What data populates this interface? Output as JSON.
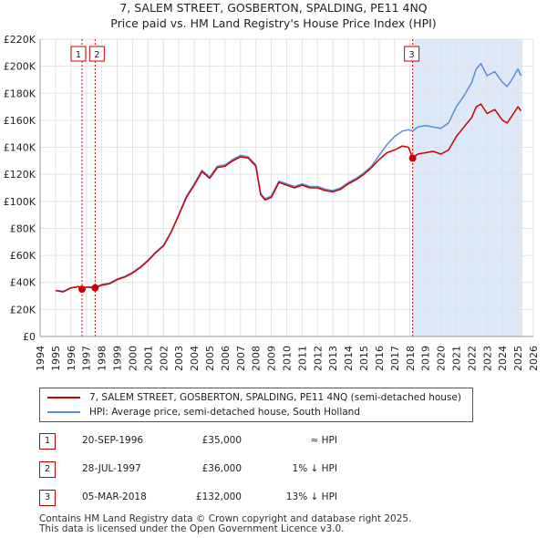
{
  "title_line1": "7, SALEM STREET, GOSBERTON, SPALDING, PE11 4NQ",
  "title_line2": "Price paid vs. HM Land Registry's House Price Index (HPI)",
  "colors": {
    "property": "#cc0000",
    "hpi": "#5b8fd4",
    "shade": "#dde8f8",
    "marker_line": "#cc0000"
  },
  "legend": {
    "property_label": "7, SALEM STREET, GOSBERTON, SPALDING, PE11 4NQ (semi-detached house)",
    "hpi_label": "HPI: Average price, semi-detached house, South Holland"
  },
  "sales": [
    {
      "num": "1",
      "date": "20-SEP-1996",
      "price": "£35,000",
      "hpi": "≈ HPI"
    },
    {
      "num": "2",
      "date": "28-JUL-1997",
      "price": "£36,000",
      "hpi": "1% ↓ HPI"
    },
    {
      "num": "3",
      "date": "05-MAR-2018",
      "price": "£132,000",
      "hpi": "13% ↓ HPI"
    }
  ],
  "footer_line1": "Contains HM Land Registry data © Crown copyright and database right 2025.",
  "footer_line2": "This data is licensed under the Open Government Licence v3.0.",
  "chart_data": {
    "type": "line",
    "title": "7, SALEM STREET, GOSBERTON, SPALDING, PE11 4NQ — Price paid vs. HPI",
    "xlim": [
      1994,
      2026
    ],
    "ylim": [
      0,
      220000
    ],
    "x_ticks": [
      1994,
      1995,
      1996,
      1997,
      1998,
      1999,
      2000,
      2001,
      2002,
      2003,
      2004,
      2005,
      2006,
      2007,
      2008,
      2009,
      2010,
      2011,
      2012,
      2013,
      2014,
      2015,
      2016,
      2017,
      2018,
      2019,
      2020,
      2021,
      2022,
      2023,
      2024,
      2025,
      2026
    ],
    "y_ticks": [
      0,
      20000,
      40000,
      60000,
      80000,
      100000,
      120000,
      140000,
      160000,
      180000,
      200000,
      220000
    ],
    "y_tick_labels": [
      "£0",
      "£20K",
      "£40K",
      "£60K",
      "£80K",
      "£100K",
      "£120K",
      "£140K",
      "£160K",
      "£180K",
      "£200K",
      "£220K"
    ],
    "grid": true,
    "shaded_region": [
      2018.17,
      2025.3
    ],
    "sale_markers": [
      {
        "label": "1",
        "x": 1996.72,
        "y": 35000
      },
      {
        "label": "2",
        "x": 1997.57,
        "y": 36000
      },
      {
        "label": "3",
        "x": 2018.17,
        "y": 132000
      }
    ],
    "series": [
      {
        "name": "7, SALEM STREET, GOSBERTON, SPALDING, PE11 4NQ (semi-detached house)",
        "x": [
          1995.0,
          1995.5,
          1996.0,
          1996.5,
          1996.72,
          1997.0,
          1997.57,
          1998.0,
          1998.5,
          1999.0,
          1999.5,
          2000.0,
          2000.5,
          2001.0,
          2001.5,
          2002.0,
          2002.5,
          2003.0,
          2003.5,
          2004.0,
          2004.5,
          2005.0,
          2005.5,
          2006.0,
          2006.5,
          2007.0,
          2007.5,
          2008.0,
          2008.3,
          2008.6,
          2009.0,
          2009.5,
          2010.0,
          2010.5,
          2011.0,
          2011.5,
          2012.0,
          2012.5,
          2013.0,
          2013.5,
          2014.0,
          2014.5,
          2015.0,
          2015.5,
          2016.0,
          2016.5,
          2017.0,
          2017.5,
          2017.9,
          2018.17,
          2018.5,
          2019.0,
          2019.5,
          2020.0,
          2020.5,
          2021.0,
          2021.5,
          2022.0,
          2022.3,
          2022.6,
          2023.0,
          2023.5,
          2024.0,
          2024.3,
          2024.6,
          2025.0,
          2025.2
        ],
        "y": [
          34000,
          33000,
          36000,
          37000,
          35000,
          36500,
          36000,
          38000,
          39000,
          42000,
          44000,
          47000,
          51000,
          56000,
          62000,
          67000,
          77000,
          90000,
          103000,
          112000,
          122000,
          117000,
          125000,
          126000,
          130000,
          133000,
          132000,
          126000,
          105000,
          101000,
          103000,
          114000,
          112000,
          110000,
          112000,
          110000,
          110000,
          108000,
          107000,
          109000,
          113000,
          116000,
          120000,
          125000,
          131000,
          136000,
          138000,
          141000,
          140000,
          132000,
          135000,
          136000,
          137000,
          135000,
          138000,
          148000,
          155000,
          162000,
          170000,
          172000,
          165000,
          168000,
          160000,
          158000,
          163000,
          170000,
          167000
        ]
      },
      {
        "name": "HPI: Average price, semi-detached house, South Holland",
        "x": [
          1995.0,
          1995.5,
          1996.0,
          1996.5,
          1996.72,
          1997.0,
          1997.57,
          1998.0,
          1998.5,
          1999.0,
          1999.5,
          2000.0,
          2000.5,
          2001.0,
          2001.5,
          2002.0,
          2002.5,
          2003.0,
          2003.5,
          2004.0,
          2004.5,
          2005.0,
          2005.5,
          2006.0,
          2006.5,
          2007.0,
          2007.5,
          2008.0,
          2008.3,
          2008.6,
          2009.0,
          2009.5,
          2010.0,
          2010.5,
          2011.0,
          2011.5,
          2012.0,
          2012.5,
          2013.0,
          2013.5,
          2014.0,
          2014.5,
          2015.0,
          2015.5,
          2016.0,
          2016.5,
          2017.0,
          2017.5,
          2017.9,
          2018.17,
          2018.5,
          2019.0,
          2019.5,
          2020.0,
          2020.5,
          2021.0,
          2021.5,
          2022.0,
          2022.3,
          2022.6,
          2023.0,
          2023.5,
          2024.0,
          2024.3,
          2024.6,
          2025.0,
          2025.2
        ],
        "y": [
          34000,
          33500,
          36000,
          37000,
          35000,
          36500,
          36500,
          38500,
          39500,
          42500,
          44500,
          47500,
          51500,
          56500,
          62500,
          67500,
          77500,
          90500,
          104000,
          113000,
          123000,
          118000,
          126000,
          127000,
          131000,
          134000,
          133000,
          127000,
          106000,
          102000,
          104000,
          115000,
          113000,
          111000,
          113000,
          111000,
          111000,
          109000,
          108000,
          110000,
          114000,
          117000,
          121000,
          126000,
          134000,
          142000,
          148000,
          152000,
          153000,
          152000,
          155000,
          156000,
          155000,
          154000,
          158000,
          170000,
          178000,
          188000,
          198000,
          202000,
          193000,
          196000,
          188000,
          185000,
          190000,
          198000,
          193000
        ]
      }
    ]
  }
}
